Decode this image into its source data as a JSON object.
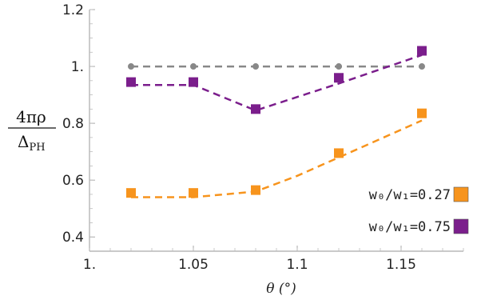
{
  "chart_data": {
    "type": "line",
    "title": "",
    "xlabel": "θ (°)",
    "ylabel": "4πρ / Δ_PH",
    "ylabel_parts": {
      "numerator": "4πρ",
      "denominator": "Δ",
      "subscript": "PH"
    },
    "xlim": [
      1.0,
      1.18
    ],
    "ylim": [
      0.35,
      1.2
    ],
    "x_ticks": [
      1.0,
      1.05,
      1.1,
      1.15
    ],
    "x_tick_labels": [
      "1.",
      "1.05",
      "1.1",
      "1.15"
    ],
    "y_ticks": [
      0.4,
      0.6,
      0.8,
      1.0,
      1.2
    ],
    "y_tick_labels": [
      "0.4",
      "0.6",
      "0.8",
      "1.",
      "1.2"
    ],
    "grid": false,
    "legend_position": "bottom-right",
    "series": [
      {
        "name": "",
        "color": "#888888",
        "marker": "circle",
        "x": [
          1.02,
          1.05,
          1.08,
          1.12,
          1.16
        ],
        "y": [
          1.0,
          1.0,
          1.0,
          1.0,
          1.0
        ],
        "fit": [
          [
            1.02,
            1.0
          ],
          [
            1.16,
            1.0
          ]
        ]
      },
      {
        "name": "w₀/w₁=0.75",
        "color": "#7B1E8C",
        "marker": "square",
        "x": [
          1.02,
          1.05,
          1.08,
          1.12,
          1.16
        ],
        "y": [
          0.945,
          0.945,
          0.85,
          0.96,
          1.055
        ],
        "fit": [
          [
            1.02,
            0.935
          ],
          [
            1.05,
            0.935
          ],
          [
            1.08,
            0.845
          ],
          [
            1.12,
            0.94
          ],
          [
            1.16,
            1.04
          ]
        ]
      },
      {
        "name": "w₀/w₁=0.27",
        "color": "#F7941D",
        "marker": "square",
        "x": [
          1.02,
          1.05,
          1.08,
          1.12,
          1.16
        ],
        "y": [
          0.555,
          0.555,
          0.565,
          0.695,
          0.835
        ],
        "fit": [
          [
            1.02,
            0.54
          ],
          [
            1.05,
            0.54
          ],
          [
            1.08,
            0.56
          ],
          [
            1.1,
            0.615
          ],
          [
            1.12,
            0.68
          ],
          [
            1.14,
            0.745
          ],
          [
            1.16,
            0.81
          ]
        ]
      }
    ],
    "legend": [
      {
        "label": "w₀/w₁=0.27",
        "color": "#F7941D"
      },
      {
        "label": "w₀/w₁=0.75",
        "color": "#7B1E8C"
      }
    ]
  }
}
